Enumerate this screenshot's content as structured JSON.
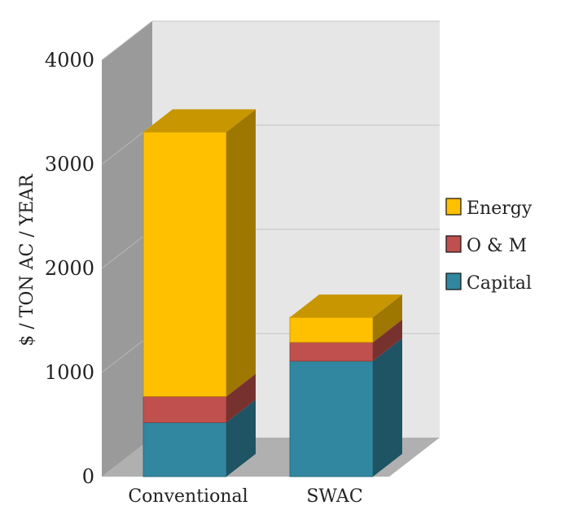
{
  "chart_data": {
    "type": "bar",
    "stacked": true,
    "three_d": true,
    "categories": [
      "Conventional",
      "SWAC"
    ],
    "series": [
      {
        "name": "Capital",
        "values": [
          520,
          1110
        ],
        "color": "#31879f"
      },
      {
        "name": "O & M",
        "values": [
          250,
          180
        ],
        "color": "#c0504d"
      },
      {
        "name": "Energy",
        "values": [
          2540,
          240
        ],
        "color": "#ffc000"
      }
    ],
    "ylabel": "$ / TON AC / YEAR",
    "xlabel": "",
    "ylim": [
      0,
      4000
    ],
    "yticks": [
      0,
      1000,
      2000,
      3000,
      4000
    ],
    "grid": true,
    "legend_position": "right"
  }
}
